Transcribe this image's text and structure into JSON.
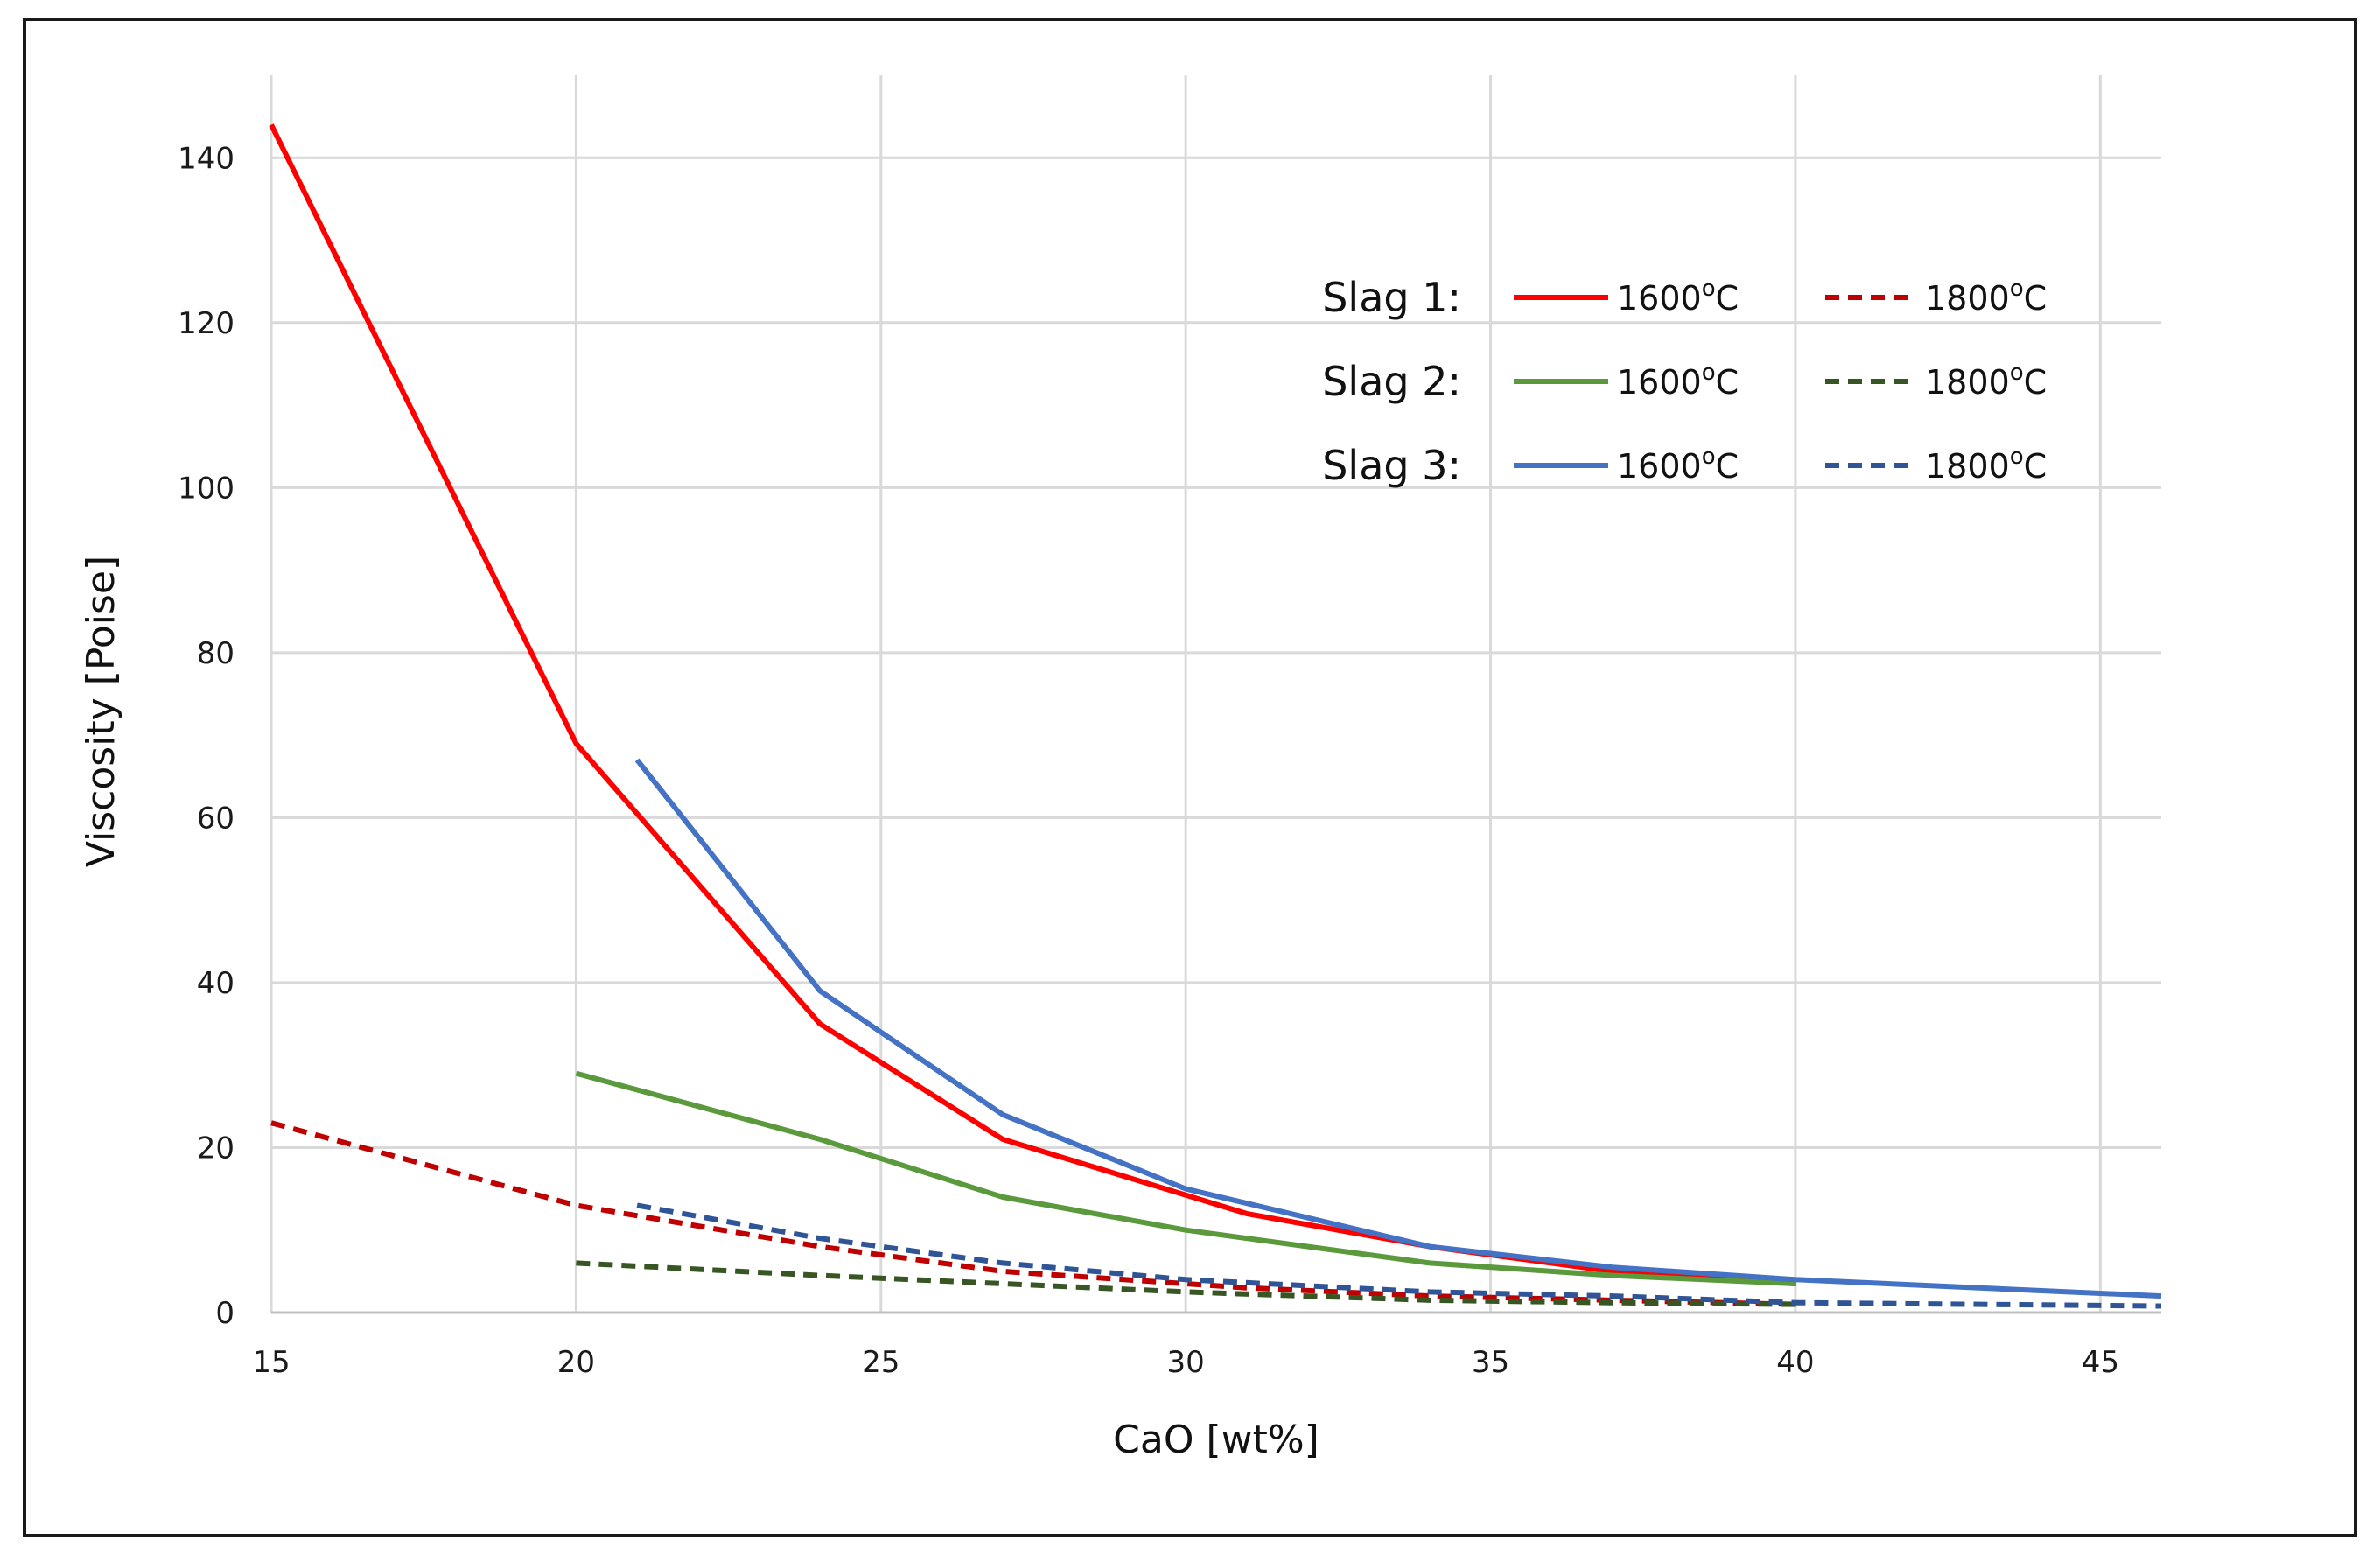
{
  "chart_data": {
    "type": "line",
    "title": "",
    "xlabel": "CaO [wt%]",
    "ylabel": "Viscosity [Poise]",
    "xlim": [
      15,
      46
    ],
    "ylim": [
      0,
      150
    ],
    "xticks": [
      15,
      20,
      25,
      30,
      35,
      40,
      45
    ],
    "yticks": [
      0,
      20,
      40,
      60,
      80,
      100,
      120,
      140
    ],
    "grid": true,
    "legend_position": "top-right",
    "series": [
      {
        "name": "Slag 1: 1600oC",
        "group": "Slag 1:",
        "temp": "1600",
        "style": "solid",
        "color": "#ff0000",
        "x": [
          15,
          20,
          24,
          27,
          31,
          34,
          37,
          40
        ],
        "y": [
          144,
          69,
          35,
          21,
          12,
          8,
          5,
          3.5
        ]
      },
      {
        "name": "Slag 1: 1800oC",
        "group": "Slag 1:",
        "temp": "1800",
        "style": "dashed",
        "color": "#c00000",
        "x": [
          15,
          20,
          24,
          27,
          31,
          34,
          37,
          40
        ],
        "y": [
          23,
          13,
          8,
          5,
          3,
          2,
          1.5,
          1
        ]
      },
      {
        "name": "Slag 2: 1600oC",
        "group": "Slag 2:",
        "temp": "1600",
        "style": "solid",
        "color": "#5b9a3c",
        "x": [
          20,
          24,
          27,
          30,
          34,
          37,
          40
        ],
        "y": [
          29,
          21,
          14,
          10,
          6,
          4.5,
          3.5
        ]
      },
      {
        "name": "Slag 2: 1800oC",
        "group": "Slag 2:",
        "temp": "1800",
        "style": "dashed",
        "color": "#375623",
        "x": [
          20,
          24,
          27,
          30,
          34,
          37,
          40
        ],
        "y": [
          6,
          4.5,
          3.5,
          2.5,
          1.5,
          1.2,
          1
        ]
      },
      {
        "name": "Slag 3: 1600oC",
        "group": "Slag 3:",
        "temp": "1600",
        "style": "solid",
        "color": "#4472c4",
        "x": [
          21,
          24,
          27,
          30,
          34,
          37,
          40,
          46
        ],
        "y": [
          67,
          39,
          24,
          15,
          8,
          5.5,
          4,
          2
        ]
      },
      {
        "name": "Slag 3: 1800oC",
        "group": "Slag 3:",
        "temp": "1800",
        "style": "dashed",
        "color": "#2f5597",
        "x": [
          21,
          24,
          27,
          30,
          34,
          37,
          40,
          46
        ],
        "y": [
          13,
          9,
          6,
          4,
          2.5,
          2,
          1.2,
          0.8
        ]
      }
    ],
    "legend": {
      "rows": [
        "Slag 1:",
        "Slag 2:",
        "Slag 3:"
      ],
      "temps": [
        "1600",
        "1800"
      ],
      "degree_symbol": "o",
      "unit": "C"
    }
  }
}
